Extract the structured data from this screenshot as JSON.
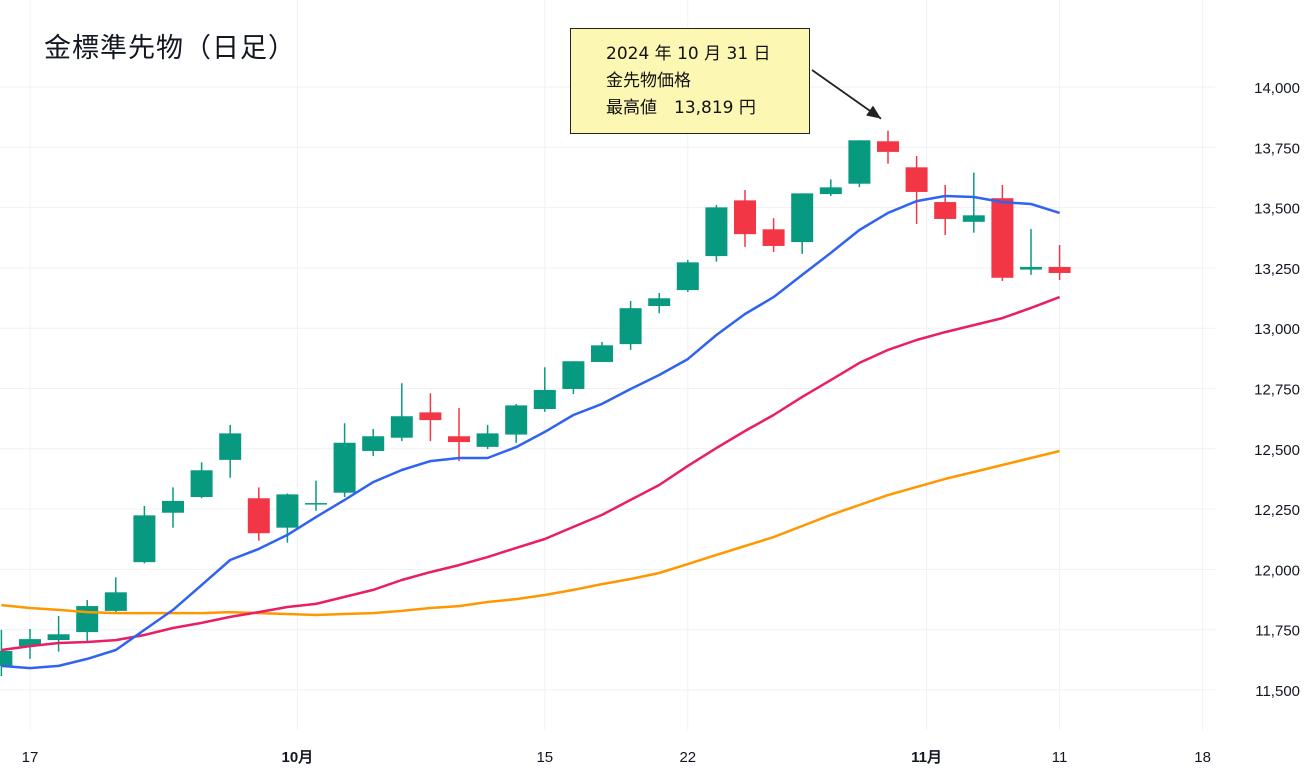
{
  "chart_data": {
    "type": "candlestick",
    "title": "金標準先物（日足）",
    "annotation": {
      "date_line": "2024 年 10 月 31 日",
      "label_line": "金先物価格",
      "value_line": "最高値　13,819 円",
      "target_date": "2024-10-31",
      "target_value": 13819
    },
    "ylim": [
      11400,
      14100
    ],
    "yticks": [
      11500,
      11750,
      12000,
      12250,
      12500,
      12750,
      13000,
      13250,
      13500,
      13750,
      14000
    ],
    "ytick_labels": [
      "11,500",
      "11,750",
      "12,000",
      "12,250",
      "12,500",
      "12,750",
      "13,000",
      "13,250",
      "13,500",
      "13,750",
      "14,000"
    ],
    "xticks": [
      {
        "date": "2024-09-17",
        "label": "17",
        "bold": false
      },
      {
        "date": "2024-10-01",
        "label": "10月",
        "bold": true
      },
      {
        "date": "2024-10-15",
        "label": "15",
        "bold": false
      },
      {
        "date": "2024-10-22",
        "label": "22",
        "bold": false
      },
      {
        "date": "2024-11-01",
        "label": "11月",
        "bold": true
      },
      {
        "date": "2024-11-11",
        "label": "11",
        "bold": false
      },
      {
        "date": "2024-11-18",
        "label": "18",
        "bold": false
      }
    ],
    "grid": true,
    "colors": {
      "up": "#089981",
      "down": "#f23645",
      "ma_short": "#2f63f0",
      "ma_mid": "#e91e63",
      "ma_long": "#ff9800",
      "grid": "#f0f1f3",
      "axis_text": "#131722"
    },
    "dates": [
      "2024-09-13",
      "2024-09-17",
      "2024-09-18",
      "2024-09-19",
      "2024-09-20",
      "2024-09-24",
      "2024-09-25",
      "2024-09-26",
      "2024-09-27",
      "2024-09-30",
      "2024-10-01",
      "2024-10-02",
      "2024-10-03",
      "2024-10-04",
      "2024-10-07",
      "2024-10-08",
      "2024-10-09",
      "2024-10-10",
      "2024-10-11",
      "2024-10-15",
      "2024-10-16",
      "2024-10-17",
      "2024-10-18",
      "2024-10-21",
      "2024-10-22",
      "2024-10-23",
      "2024-10-24",
      "2024-10-25",
      "2024-10-28",
      "2024-10-29",
      "2024-10-30",
      "2024-10-31",
      "2024-11-01",
      "2024-11-05",
      "2024-11-06",
      "2024-11-07",
      "2024-11-08",
      "2024-11-11"
    ],
    "ohlc": [
      [
        11600,
        11749,
        11558,
        11662
      ],
      [
        11682,
        11753,
        11629,
        11711
      ],
      [
        11707,
        11807,
        11659,
        11731
      ],
      [
        11740,
        11873,
        11696,
        11848
      ],
      [
        11828,
        11967,
        11820,
        11905
      ],
      [
        12030,
        12263,
        12025,
        12224
      ],
      [
        12235,
        12340,
        12173,
        12284
      ],
      [
        12300,
        12444,
        12295,
        12411
      ],
      [
        12454,
        12599,
        12380,
        12564
      ],
      [
        12295,
        12340,
        12119,
        12150
      ],
      [
        12173,
        12315,
        12111,
        12311
      ],
      [
        12272,
        12368,
        12243,
        12275
      ],
      [
        12318,
        12606,
        12300,
        12525
      ],
      [
        12491,
        12582,
        12470,
        12552
      ],
      [
        12546,
        12772,
        12532,
        12635
      ],
      [
        12651,
        12730,
        12532,
        12619
      ],
      [
        12552,
        12669,
        12449,
        12528
      ],
      [
        12508,
        12599,
        12499,
        12564
      ],
      [
        12559,
        12686,
        12525,
        12680
      ],
      [
        12665,
        12838,
        12653,
        12744
      ],
      [
        12748,
        12863,
        12727,
        12863
      ],
      [
        12860,
        12943,
        12860,
        12929
      ],
      [
        12934,
        13113,
        12910,
        13083
      ],
      [
        13092,
        13146,
        13062,
        13124
      ],
      [
        13158,
        13283,
        13150,
        13273
      ],
      [
        13299,
        13511,
        13276,
        13501
      ],
      [
        13530,
        13573,
        13337,
        13390
      ],
      [
        13410,
        13456,
        13316,
        13341
      ],
      [
        13357,
        13559,
        13308,
        13559
      ],
      [
        13556,
        13617,
        13548,
        13584
      ],
      [
        13599,
        13779,
        13585,
        13779
      ],
      [
        13775,
        13819,
        13682,
        13731
      ],
      [
        13667,
        13714,
        13432,
        13565
      ],
      [
        13523,
        13594,
        13386,
        13453
      ],
      [
        13441,
        13645,
        13396,
        13468
      ],
      [
        13539,
        13594,
        13196,
        13209
      ],
      [
        13243,
        13411,
        13221,
        13254
      ],
      [
        13254,
        13345,
        13200,
        13229
      ]
    ],
    "ohlc_fields": [
      "open",
      "high",
      "low",
      "close"
    ],
    "ma_short": [
      11600,
      11591,
      11600,
      11629,
      11666,
      11749,
      11832,
      11935,
      12039,
      12085,
      12143,
      12217,
      12288,
      12362,
      12412,
      12449,
      12462,
      12462,
      12507,
      12570,
      12640,
      12686,
      12748,
      12806,
      12872,
      12972,
      13059,
      13129,
      13221,
      13312,
      13407,
      13478,
      13527,
      13548,
      13544,
      13523,
      13515,
      13478
    ],
    "ma_mid": [
      11666,
      11682,
      11695,
      11699,
      11707,
      11728,
      11757,
      11778,
      11803,
      11823,
      11844,
      11857,
      11886,
      11915,
      11956,
      11989,
      12018,
      12051,
      12089,
      12126,
      12176,
      12226,
      12288,
      12350,
      12429,
      12503,
      12574,
      12640,
      12715,
      12785,
      12856,
      12910,
      12951,
      12984,
      13013,
      13042,
      13084,
      13129
    ],
    "ma_long": [
      11852,
      11840,
      11832,
      11823,
      11819,
      11819,
      11819,
      11819,
      11823,
      11819,
      11815,
      11811,
      11815,
      11819,
      11828,
      11840,
      11848,
      11865,
      11877,
      11894,
      11915,
      11939,
      11960,
      11985,
      12022,
      12060,
      12097,
      12134,
      12180,
      12226,
      12267,
      12308,
      12342,
      12375,
      12404,
      12433,
      12462,
      12491
    ]
  }
}
